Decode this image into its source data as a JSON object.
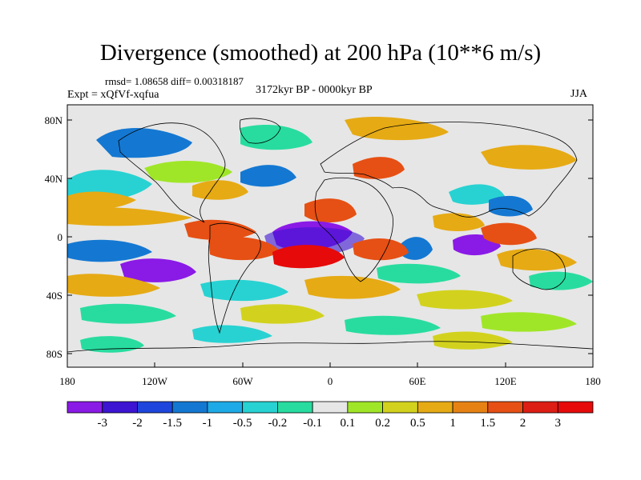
{
  "title": "Divergence (smoothed) at 200 hPa (10**6 m/s)",
  "stats": "rmsd= 1.08658 diff= 0.00318187",
  "expt": "Expt = xQfVf-xqfua",
  "period": "3172kyr BP - 0000kyr BP",
  "season": "JJA",
  "lat_ticks": [
    "80N",
    "40N",
    "0",
    "40S",
    "80S"
  ],
  "lon_ticks": [
    "180",
    "120W",
    "60W",
    "0",
    "60E",
    "120E",
    "180"
  ],
  "colorbar": {
    "labels": [
      "-3",
      "-2",
      "-1.5",
      "-1",
      "-0.5",
      "-0.2",
      "-0.1",
      "0.1",
      "0.2",
      "0.5",
      "1",
      "1.5",
      "2",
      "3"
    ],
    "colors": [
      "#8a1ae6",
      "#3c14d2",
      "#1e46dc",
      "#1478d2",
      "#1eaae6",
      "#28d2d2",
      "#28dca0",
      "#e6e6e6",
      "#a0e628",
      "#d2d21e",
      "#e6aa14",
      "#e68214",
      "#e65014",
      "#dc1e14",
      "#e60a0a"
    ]
  },
  "map_palette": {
    "background": "#e6e6e6",
    "strong_negative": "#8a1ae6",
    "negative": "#3c14d2",
    "moderate_negative": "#1478d2",
    "weak_negative": "#28d2d2",
    "slight_negative": "#28dca0",
    "slight_positive": "#a0e628",
    "weak_positive": "#d2d21e",
    "positive": "#e6aa14",
    "strong_positive": "#e65014",
    "max_positive": "#e60a0a"
  }
}
